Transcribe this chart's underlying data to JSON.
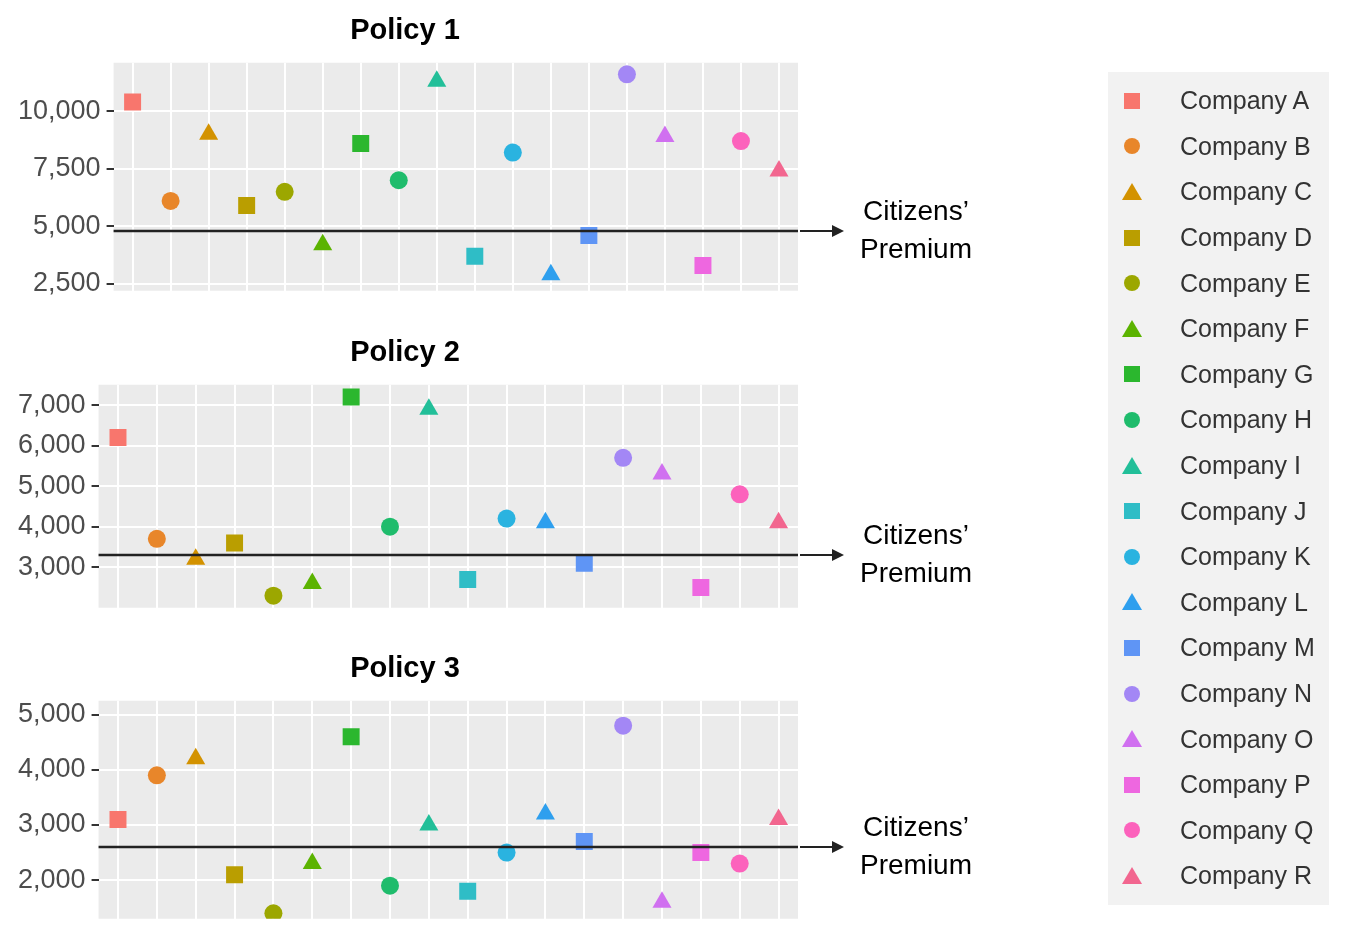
{
  "chart_data": [
    {
      "type": "scatter",
      "title": "Policy 1",
      "categories": [
        null,
        null,
        null,
        null,
        null,
        null,
        null,
        null,
        null,
        null,
        null,
        null,
        null,
        null,
        null,
        null,
        null,
        null
      ],
      "tick_labels": "y",
      "grid": true,
      "legend": "right",
      "ylim": [
        2200,
        12100
      ],
      "yticks": [
        {
          "value": 2500,
          "label": "2,500"
        },
        {
          "value": 5000,
          "label": "5,000"
        },
        {
          "value": 7500,
          "label": "7,500"
        },
        {
          "value": 10000,
          "label": "10,000"
        }
      ],
      "ref_lines": [
        {
          "axis": "y",
          "value": 4800,
          "label": "Citizens’ Premium",
          "color": "#222222"
        }
      ],
      "series": [
        {
          "name": "Company A",
          "color": "#f8766d",
          "marker": "square",
          "values": [
            10400,
            null,
            null,
            null,
            null,
            null,
            null,
            null,
            null,
            null,
            null,
            null,
            null,
            null,
            null,
            null,
            null,
            null
          ]
        },
        {
          "name": "Company B",
          "color": "#e8862a",
          "marker": "circle",
          "values": [
            null,
            6100,
            null,
            null,
            null,
            null,
            null,
            null,
            null,
            null,
            null,
            null,
            null,
            null,
            null,
            null,
            null,
            null
          ]
        },
        {
          "name": "Company C",
          "color": "#d39200",
          "marker": "triangle",
          "values": [
            null,
            null,
            9000,
            null,
            null,
            null,
            null,
            null,
            null,
            null,
            null,
            null,
            null,
            null,
            null,
            null,
            null,
            null
          ]
        },
        {
          "name": "Company D",
          "color": "#ba9e00",
          "marker": "square",
          "values": [
            null,
            null,
            null,
            5900,
            null,
            null,
            null,
            null,
            null,
            null,
            null,
            null,
            null,
            null,
            null,
            null,
            null,
            null
          ]
        },
        {
          "name": "Company E",
          "color": "#9ca700",
          "marker": "circle",
          "values": [
            null,
            null,
            null,
            null,
            6500,
            null,
            null,
            null,
            null,
            null,
            null,
            null,
            null,
            null,
            null,
            null,
            null,
            null
          ]
        },
        {
          "name": "Company F",
          "color": "#5bb300",
          "marker": "triangle",
          "values": [
            null,
            null,
            null,
            null,
            null,
            4200,
            null,
            null,
            null,
            null,
            null,
            null,
            null,
            null,
            null,
            null,
            null,
            null
          ]
        },
        {
          "name": "Company G",
          "color": "#2bb72e",
          "marker": "square",
          "values": [
            null,
            null,
            null,
            null,
            null,
            null,
            8600,
            null,
            null,
            null,
            null,
            null,
            null,
            null,
            null,
            null,
            null,
            null
          ]
        },
        {
          "name": "Company H",
          "color": "#1fbc6c",
          "marker": "circle",
          "values": [
            null,
            null,
            null,
            null,
            null,
            null,
            null,
            7000,
            null,
            null,
            null,
            null,
            null,
            null,
            null,
            null,
            null,
            null
          ]
        },
        {
          "name": "Company I",
          "color": "#22bf99",
          "marker": "triangle",
          "values": [
            null,
            null,
            null,
            null,
            null,
            null,
            null,
            null,
            11300,
            null,
            null,
            null,
            null,
            null,
            null,
            null,
            null,
            null
          ]
        },
        {
          "name": "Company J",
          "color": "#2fbdc6",
          "marker": "square",
          "values": [
            null,
            null,
            null,
            null,
            null,
            null,
            null,
            null,
            null,
            3700,
            null,
            null,
            null,
            null,
            null,
            null,
            null,
            null
          ]
        },
        {
          "name": "Company K",
          "color": "#2ab3e0",
          "marker": "circle",
          "values": [
            null,
            null,
            null,
            null,
            null,
            null,
            null,
            null,
            null,
            null,
            8200,
            null,
            null,
            null,
            null,
            null,
            null,
            null
          ]
        },
        {
          "name": "Company L",
          "color": "#2e9fee",
          "marker": "triangle",
          "values": [
            null,
            null,
            null,
            null,
            null,
            null,
            null,
            null,
            null,
            null,
            null,
            2900,
            null,
            null,
            null,
            null,
            null,
            null
          ]
        },
        {
          "name": "Company M",
          "color": "#5f95f5",
          "marker": "square",
          "values": [
            null,
            null,
            null,
            null,
            null,
            null,
            null,
            null,
            null,
            null,
            null,
            null,
            4600,
            null,
            null,
            null,
            null,
            null
          ]
        },
        {
          "name": "Company N",
          "color": "#a387f5",
          "marker": "circle",
          "values": [
            null,
            null,
            null,
            null,
            null,
            null,
            null,
            null,
            null,
            null,
            null,
            null,
            null,
            11600,
            null,
            null,
            null,
            null
          ]
        },
        {
          "name": "Company O",
          "color": "#d070f0",
          "marker": "triangle",
          "values": [
            null,
            null,
            null,
            null,
            null,
            null,
            null,
            null,
            null,
            null,
            null,
            null,
            null,
            null,
            8900,
            null,
            null,
            null
          ]
        },
        {
          "name": "Company P",
          "color": "#ee67e0",
          "marker": "square",
          "values": [
            null,
            null,
            null,
            null,
            null,
            null,
            null,
            null,
            null,
            null,
            null,
            null,
            null,
            null,
            null,
            3300,
            null,
            null
          ]
        },
        {
          "name": "Company Q",
          "color": "#fc62bc",
          "marker": "circle",
          "values": [
            null,
            null,
            null,
            null,
            null,
            null,
            null,
            null,
            null,
            null,
            null,
            null,
            null,
            null,
            null,
            null,
            8700,
            null
          ]
        },
        {
          "name": "Company R",
          "color": "#f2668f",
          "marker": "triangle",
          "values": [
            null,
            null,
            null,
            null,
            null,
            null,
            null,
            null,
            null,
            null,
            null,
            null,
            null,
            null,
            null,
            null,
            null,
            7400
          ]
        }
      ]
    },
    {
      "type": "scatter",
      "title": "Policy 2",
      "categories": [
        null,
        null,
        null,
        null,
        null,
        null,
        null,
        null,
        null,
        null,
        null,
        null,
        null,
        null,
        null,
        null,
        null,
        null
      ],
      "tick_labels": "y",
      "grid": true,
      "ylim": [
        2000,
        7500
      ],
      "yticks": [
        {
          "value": 3000,
          "label": "3,000"
        },
        {
          "value": 4000,
          "label": "4,000"
        },
        {
          "value": 5000,
          "label": "5,000"
        },
        {
          "value": 6000,
          "label": "6,000"
        },
        {
          "value": 7000,
          "label": "7,000"
        }
      ],
      "ref_lines": [
        {
          "axis": "y",
          "value": 3300,
          "label": "Citizens’ Premium",
          "color": "#222222"
        }
      ],
      "series": [
        {
          "color": "#f8766d",
          "marker": "square",
          "values": [
            6200,
            null,
            null,
            null,
            null,
            null,
            null,
            null,
            null,
            null,
            null,
            null,
            null,
            null,
            null,
            null,
            null,
            null
          ]
        },
        {
          "color": "#e8862a",
          "marker": "circle",
          "values": [
            null,
            3700,
            null,
            null,
            null,
            null,
            null,
            null,
            null,
            null,
            null,
            null,
            null,
            null,
            null,
            null,
            null,
            null
          ]
        },
        {
          "color": "#d39200",
          "marker": "triangle",
          "values": [
            null,
            null,
            3200,
            null,
            null,
            null,
            null,
            null,
            null,
            null,
            null,
            null,
            null,
            null,
            null,
            null,
            null,
            null
          ]
        },
        {
          "color": "#ba9e00",
          "marker": "square",
          "values": [
            null,
            null,
            null,
            3600,
            null,
            null,
            null,
            null,
            null,
            null,
            null,
            null,
            null,
            null,
            null,
            null,
            null,
            null
          ]
        },
        {
          "color": "#9ca700",
          "marker": "circle",
          "values": [
            null,
            null,
            null,
            null,
            2300,
            null,
            null,
            null,
            null,
            null,
            null,
            null,
            null,
            null,
            null,
            null,
            null,
            null
          ]
        },
        {
          "color": "#5bb300",
          "marker": "triangle",
          "values": [
            null,
            null,
            null,
            null,
            null,
            2600,
            null,
            null,
            null,
            null,
            null,
            null,
            null,
            null,
            null,
            null,
            null,
            null
          ]
        },
        {
          "color": "#2bb72e",
          "marker": "square",
          "values": [
            null,
            null,
            null,
            null,
            null,
            null,
            7200,
            null,
            null,
            null,
            null,
            null,
            null,
            null,
            null,
            null,
            null,
            null
          ]
        },
        {
          "color": "#1fbc6c",
          "marker": "circle",
          "values": [
            null,
            null,
            null,
            null,
            null,
            null,
            null,
            4000,
            null,
            null,
            null,
            null,
            null,
            null,
            null,
            null,
            null,
            null
          ]
        },
        {
          "color": "#22bf99",
          "marker": "triangle",
          "values": [
            null,
            null,
            null,
            null,
            null,
            null,
            null,
            null,
            6900,
            null,
            null,
            null,
            null,
            null,
            null,
            null,
            null,
            null
          ]
        },
        {
          "color": "#2fbdc6",
          "marker": "square",
          "values": [
            null,
            null,
            null,
            null,
            null,
            null,
            null,
            null,
            null,
            2700,
            null,
            null,
            null,
            null,
            null,
            null,
            null,
            null
          ]
        },
        {
          "color": "#2ab3e0",
          "marker": "circle",
          "values": [
            null,
            null,
            null,
            null,
            null,
            null,
            null,
            null,
            null,
            null,
            4200,
            null,
            null,
            null,
            null,
            null,
            null,
            null
          ]
        },
        {
          "color": "#2e9fee",
          "marker": "triangle",
          "values": [
            null,
            null,
            null,
            null,
            null,
            null,
            null,
            null,
            null,
            null,
            null,
            4100,
            null,
            null,
            null,
            null,
            null,
            null
          ]
        },
        {
          "color": "#5f95f5",
          "marker": "square",
          "values": [
            null,
            null,
            null,
            null,
            null,
            null,
            null,
            null,
            null,
            null,
            null,
            null,
            3100,
            null,
            null,
            null,
            null,
            null
          ]
        },
        {
          "color": "#a387f5",
          "marker": "circle",
          "values": [
            null,
            null,
            null,
            null,
            null,
            null,
            null,
            null,
            null,
            null,
            null,
            null,
            null,
            5700,
            null,
            null,
            null,
            null
          ]
        },
        {
          "color": "#d070f0",
          "marker": "triangle",
          "values": [
            null,
            null,
            null,
            null,
            null,
            null,
            null,
            null,
            null,
            null,
            null,
            null,
            null,
            null,
            5300,
            null,
            null,
            null
          ]
        },
        {
          "color": "#ee67e0",
          "marker": "square",
          "values": [
            null,
            null,
            null,
            null,
            null,
            null,
            null,
            null,
            null,
            null,
            null,
            null,
            null,
            null,
            null,
            2500,
            null,
            null
          ]
        },
        {
          "color": "#fc62bc",
          "marker": "circle",
          "values": [
            null,
            null,
            null,
            null,
            null,
            null,
            null,
            null,
            null,
            null,
            null,
            null,
            null,
            null,
            null,
            null,
            4800,
            null
          ]
        },
        {
          "color": "#f2668f",
          "marker": "triangle",
          "values": [
            null,
            null,
            null,
            null,
            null,
            null,
            null,
            null,
            null,
            null,
            null,
            null,
            null,
            null,
            null,
            null,
            null,
            4100
          ]
        }
      ]
    },
    {
      "type": "scatter",
      "title": "Policy 3",
      "categories": [
        null,
        null,
        null,
        null,
        null,
        null,
        null,
        null,
        null,
        null,
        null,
        null,
        null,
        null,
        null,
        null,
        null,
        null
      ],
      "tick_labels": "y",
      "grid": true,
      "ylim": [
        1300,
        5250
      ],
      "yticks": [
        {
          "value": 2000,
          "label": "2,000"
        },
        {
          "value": 3000,
          "label": "3,000"
        },
        {
          "value": 4000,
          "label": "4,000"
        },
        {
          "value": 5000,
          "label": "5,000"
        }
      ],
      "ref_lines": [
        {
          "axis": "y",
          "value": 2600,
          "label": "Citizens’ Premium",
          "color": "#222222"
        }
      ],
      "series": [
        {
          "color": "#f8766d",
          "marker": "square",
          "values": [
            3100,
            null,
            null,
            null,
            null,
            null,
            null,
            null,
            null,
            null,
            null,
            null,
            null,
            null,
            null,
            null,
            null,
            null
          ]
        },
        {
          "color": "#e8862a",
          "marker": "circle",
          "values": [
            null,
            3900,
            null,
            null,
            null,
            null,
            null,
            null,
            null,
            null,
            null,
            null,
            null,
            null,
            null,
            null,
            null,
            null
          ]
        },
        {
          "color": "#d39200",
          "marker": "triangle",
          "values": [
            null,
            null,
            4200,
            null,
            null,
            null,
            null,
            null,
            null,
            null,
            null,
            null,
            null,
            null,
            null,
            null,
            null,
            null
          ]
        },
        {
          "color": "#ba9e00",
          "marker": "square",
          "values": [
            null,
            null,
            null,
            2100,
            null,
            null,
            null,
            null,
            null,
            null,
            null,
            null,
            null,
            null,
            null,
            null,
            null,
            null
          ]
        },
        {
          "color": "#9ca700",
          "marker": "circle",
          "values": [
            null,
            null,
            null,
            null,
            1400,
            null,
            null,
            null,
            null,
            null,
            null,
            null,
            null,
            null,
            null,
            null,
            null,
            null
          ]
        },
        {
          "color": "#5bb300",
          "marker": "triangle",
          "values": [
            null,
            null,
            null,
            null,
            null,
            2300,
            null,
            null,
            null,
            null,
            null,
            null,
            null,
            null,
            null,
            null,
            null,
            null
          ]
        },
        {
          "color": "#2bb72e",
          "marker": "square",
          "values": [
            null,
            null,
            null,
            null,
            null,
            null,
            4600,
            null,
            null,
            null,
            null,
            null,
            null,
            null,
            null,
            null,
            null,
            null
          ]
        },
        {
          "color": "#1fbc6c",
          "marker": "circle",
          "values": [
            null,
            null,
            null,
            null,
            null,
            null,
            null,
            1900,
            null,
            null,
            null,
            null,
            null,
            null,
            null,
            null,
            null,
            null
          ]
        },
        {
          "color": "#22bf99",
          "marker": "triangle",
          "values": [
            null,
            null,
            null,
            null,
            null,
            null,
            null,
            null,
            3000,
            null,
            null,
            null,
            null,
            null,
            null,
            null,
            null,
            null
          ]
        },
        {
          "color": "#2fbdc6",
          "marker": "square",
          "values": [
            null,
            null,
            null,
            null,
            null,
            null,
            null,
            null,
            null,
            1800,
            null,
            null,
            null,
            null,
            null,
            null,
            null,
            null
          ]
        },
        {
          "color": "#2ab3e0",
          "marker": "circle",
          "values": [
            null,
            null,
            null,
            null,
            null,
            null,
            null,
            null,
            null,
            null,
            2500,
            null,
            null,
            null,
            null,
            null,
            null,
            null
          ]
        },
        {
          "color": "#2e9fee",
          "marker": "triangle",
          "values": [
            null,
            null,
            null,
            null,
            null,
            null,
            null,
            null,
            null,
            null,
            null,
            3200,
            null,
            null,
            null,
            null,
            null,
            null
          ]
        },
        {
          "color": "#5f95f5",
          "marker": "square",
          "values": [
            null,
            null,
            null,
            null,
            null,
            null,
            null,
            null,
            null,
            null,
            null,
            null,
            2700,
            null,
            null,
            null,
            null,
            null
          ]
        },
        {
          "color": "#a387f5",
          "marker": "circle",
          "values": [
            null,
            null,
            null,
            null,
            null,
            null,
            null,
            null,
            null,
            null,
            null,
            null,
            null,
            4800,
            null,
            null,
            null,
            null
          ]
        },
        {
          "color": "#d070f0",
          "marker": "triangle",
          "values": [
            null,
            null,
            null,
            null,
            null,
            null,
            null,
            null,
            null,
            null,
            null,
            null,
            null,
            null,
            1600,
            null,
            null,
            null
          ]
        },
        {
          "color": "#ee67e0",
          "marker": "square",
          "values": [
            null,
            null,
            null,
            null,
            null,
            null,
            null,
            null,
            null,
            null,
            null,
            null,
            null,
            null,
            null,
            2500,
            null,
            null
          ]
        },
        {
          "color": "#fc62bc",
          "marker": "circle",
          "values": [
            null,
            null,
            null,
            null,
            null,
            null,
            null,
            null,
            null,
            null,
            null,
            null,
            null,
            null,
            null,
            null,
            2300,
            null
          ]
        },
        {
          "color": "#f2668f",
          "marker": "triangle",
          "values": [
            null,
            null,
            null,
            null,
            null,
            null,
            null,
            null,
            null,
            null,
            null,
            null,
            null,
            null,
            null,
            null,
            null,
            3100
          ]
        }
      ]
    }
  ]
}
